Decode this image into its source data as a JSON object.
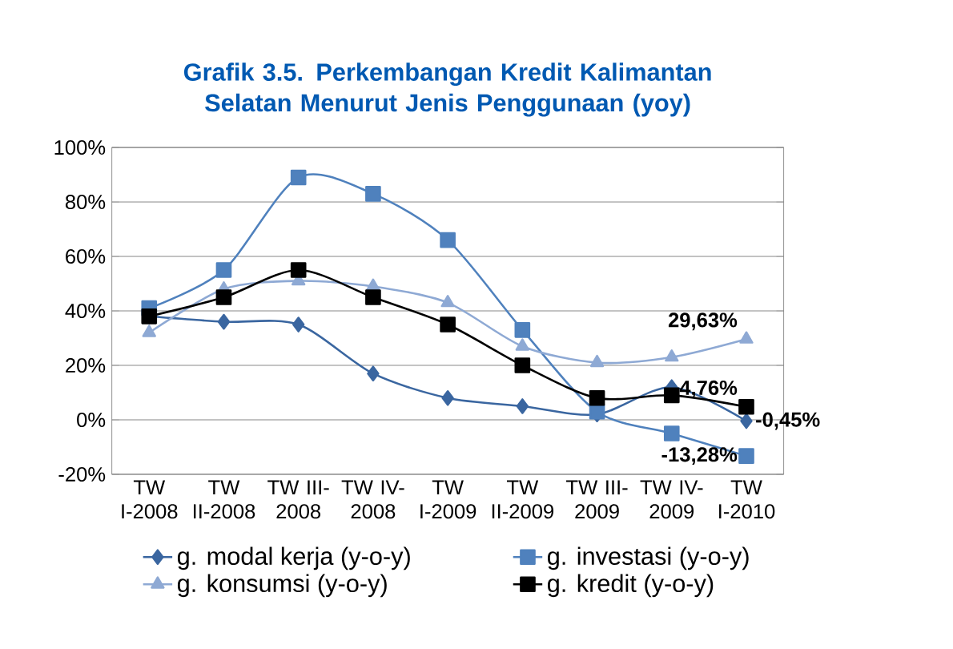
{
  "chart_data": {
    "type": "line",
    "title": "Grafik 3.5. Perkembangan Kredit Kalimantan Selatan Menurut Jenis Penggunaan (yoy)",
    "categories": [
      "TW I-2008",
      "TW II-2008",
      "TW III-2008",
      "TW IV-2008",
      "TW I-2009",
      "TW II-2009",
      "TW III-2009",
      "TW IV-2009",
      "TW I-2010"
    ],
    "series": [
      {
        "name": "g. modal kerja (y-o-y)",
        "color": "#3a66a0",
        "marker": "diamond",
        "values": [
          38,
          36,
          35,
          17,
          8,
          5,
          2,
          12,
          -0.45
        ],
        "value_labels": [
          null,
          null,
          null,
          null,
          null,
          null,
          null,
          null,
          "-0,45%"
        ]
      },
      {
        "name": "g. investasi (y-o-y)",
        "color": "#4f81bd",
        "marker": "square",
        "values": [
          41,
          55,
          89,
          83,
          66,
          33,
          3,
          -5,
          -13.28
        ],
        "value_labels": [
          null,
          null,
          null,
          null,
          null,
          null,
          null,
          null,
          "-13,28%"
        ]
      },
      {
        "name": "g. konsumsi (y-o-y)",
        "color": "#8ea9d4",
        "marker": "triangle",
        "values": [
          32,
          48,
          51,
          49,
          43,
          27,
          21,
          23,
          29.63
        ],
        "value_labels": [
          null,
          null,
          null,
          null,
          null,
          null,
          null,
          null,
          "29,63%"
        ]
      },
      {
        "name": "g. kredit (y-o-y)",
        "color": "#000000",
        "marker": "square",
        "values": [
          38,
          45,
          55,
          45,
          35,
          20,
          8,
          9,
          4.76
        ],
        "value_labels": [
          null,
          null,
          null,
          null,
          null,
          null,
          null,
          null,
          "4,76%"
        ]
      }
    ],
    "ylim": [
      -20,
      100
    ],
    "yticks": [
      {
        "value": -20,
        "label": "-20%"
      },
      {
        "value": 0,
        "label": "0%"
      },
      {
        "value": 20,
        "label": "20%"
      },
      {
        "value": 40,
        "label": "40%"
      },
      {
        "value": 60,
        "label": "60%"
      },
      {
        "value": 80,
        "label": "80%"
      },
      {
        "value": 100,
        "label": "100%"
      }
    ],
    "grid": "y",
    "legend": "bottom"
  }
}
